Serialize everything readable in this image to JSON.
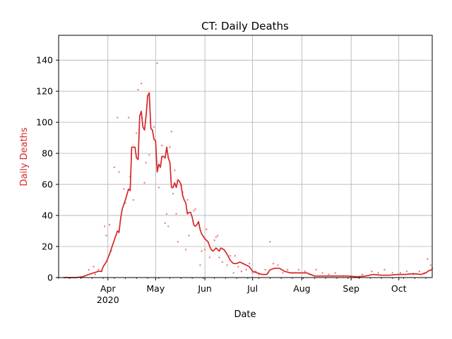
{
  "chart_data": {
    "type": "line",
    "title": "CT: Daily Deaths",
    "xlabel": "Date",
    "ylabel": "Daily Deaths",
    "ylim": [
      0,
      156
    ],
    "xlim": [
      "2020-03-01",
      "2020-10-22"
    ],
    "grid": true,
    "yticks": [
      0,
      20,
      40,
      60,
      80,
      100,
      120,
      140
    ],
    "xticks": [
      {
        "date": "2020-04-01",
        "label": "Apr",
        "sublabel": "2020"
      },
      {
        "date": "2020-05-01",
        "label": "May",
        "sublabel": ""
      },
      {
        "date": "2020-06-01",
        "label": "Jun",
        "sublabel": ""
      },
      {
        "date": "2020-07-01",
        "label": "Jul",
        "sublabel": ""
      },
      {
        "date": "2020-08-01",
        "label": "Aug",
        "sublabel": ""
      },
      {
        "date": "2020-09-01",
        "label": "Sep",
        "sublabel": ""
      },
      {
        "date": "2020-10-01",
        "label": "Oct",
        "sublabel": ""
      }
    ],
    "colors": {
      "line": "#d62728",
      "points": "#e88080",
      "ylabel": "#d62728",
      "grid": "#b0b0b0"
    },
    "series": [
      {
        "style": "line",
        "points": [
          [
            "2020-03-04",
            0
          ],
          [
            "2020-03-12",
            0
          ],
          [
            "2020-03-16",
            0.5
          ],
          [
            "2020-03-20",
            2
          ],
          [
            "2020-03-23",
            3
          ],
          [
            "2020-03-26",
            4
          ],
          [
            "2020-03-28",
            4
          ],
          [
            "2020-03-29",
            7
          ],
          [
            "2020-03-31",
            10
          ],
          [
            "2020-04-02",
            15
          ],
          [
            "2020-04-04",
            21
          ],
          [
            "2020-04-06",
            27
          ],
          [
            "2020-04-07",
            30
          ],
          [
            "2020-04-08",
            29
          ],
          [
            "2020-04-09",
            38
          ],
          [
            "2020-04-10",
            44
          ],
          [
            "2020-04-12",
            50
          ],
          [
            "2020-04-14",
            57
          ],
          [
            "2020-04-15",
            56
          ],
          [
            "2020-04-16",
            84
          ],
          [
            "2020-04-17",
            84
          ],
          [
            "2020-04-18",
            84
          ],
          [
            "2020-04-19",
            77
          ],
          [
            "2020-04-20",
            76
          ],
          [
            "2020-04-21",
            104
          ],
          [
            "2020-04-22",
            107
          ],
          [
            "2020-04-23",
            97
          ],
          [
            "2020-04-24",
            95
          ],
          [
            "2020-04-25",
            104
          ],
          [
            "2020-04-26",
            117
          ],
          [
            "2020-04-27",
            119
          ],
          [
            "2020-04-28",
            96
          ],
          [
            "2020-04-29",
            95
          ],
          [
            "2020-04-30",
            89
          ],
          [
            "2020-05-01",
            88
          ],
          [
            "2020-05-02",
            68
          ],
          [
            "2020-05-03",
            73
          ],
          [
            "2020-05-04",
            71
          ],
          [
            "2020-05-05",
            78
          ],
          [
            "2020-05-06",
            78
          ],
          [
            "2020-05-07",
            77
          ],
          [
            "2020-05-08",
            84
          ],
          [
            "2020-05-09",
            77
          ],
          [
            "2020-05-10",
            74
          ],
          [
            "2020-05-11",
            58
          ],
          [
            "2020-05-12",
            58
          ],
          [
            "2020-05-13",
            61
          ],
          [
            "2020-05-14",
            58
          ],
          [
            "2020-05-15",
            63
          ],
          [
            "2020-05-16",
            62
          ],
          [
            "2020-05-17",
            60
          ],
          [
            "2020-05-18",
            53
          ],
          [
            "2020-05-19",
            50
          ],
          [
            "2020-05-20",
            48
          ],
          [
            "2020-05-21",
            41
          ],
          [
            "2020-05-22",
            42
          ],
          [
            "2020-05-23",
            42
          ],
          [
            "2020-05-24",
            39
          ],
          [
            "2020-05-25",
            34
          ],
          [
            "2020-05-26",
            33
          ],
          [
            "2020-05-27",
            34
          ],
          [
            "2020-05-28",
            36
          ],
          [
            "2020-05-29",
            31
          ],
          [
            "2020-05-30",
            28
          ],
          [
            "2020-06-01",
            25
          ],
          [
            "2020-06-03",
            23
          ],
          [
            "2020-06-04",
            20
          ],
          [
            "2020-06-05",
            18
          ],
          [
            "2020-06-06",
            17
          ],
          [
            "2020-06-08",
            19
          ],
          [
            "2020-06-10",
            17
          ],
          [
            "2020-06-11",
            19
          ],
          [
            "2020-06-13",
            18
          ],
          [
            "2020-06-15",
            15
          ],
          [
            "2020-06-17",
            11
          ],
          [
            "2020-06-19",
            9
          ],
          [
            "2020-06-21",
            9
          ],
          [
            "2020-06-23",
            10
          ],
          [
            "2020-06-25",
            9
          ],
          [
            "2020-06-27",
            8
          ],
          [
            "2020-06-29",
            7
          ],
          [
            "2020-07-01",
            4
          ],
          [
            "2020-07-04",
            3
          ],
          [
            "2020-07-07",
            2
          ],
          [
            "2020-07-10",
            2
          ],
          [
            "2020-07-12",
            5
          ],
          [
            "2020-07-15",
            6
          ],
          [
            "2020-07-18",
            6
          ],
          [
            "2020-07-21",
            4
          ],
          [
            "2020-07-25",
            3
          ],
          [
            "2020-07-30",
            3
          ],
          [
            "2020-08-04",
            3
          ],
          [
            "2020-08-09",
            1
          ],
          [
            "2020-08-15",
            1
          ],
          [
            "2020-08-22",
            1
          ],
          [
            "2020-08-29",
            1
          ],
          [
            "2020-09-05",
            0.5
          ],
          [
            "2020-09-10",
            1
          ],
          [
            "2020-09-15",
            2
          ],
          [
            "2020-09-20",
            1.5
          ],
          [
            "2020-09-25",
            1.5
          ],
          [
            "2020-09-30",
            2
          ],
          [
            "2020-10-05",
            2
          ],
          [
            "2020-10-10",
            2.5
          ],
          [
            "2020-10-15",
            2
          ],
          [
            "2020-10-18",
            3
          ],
          [
            "2020-10-20",
            4.5
          ],
          [
            "2020-10-22",
            5
          ]
        ]
      },
      {
        "style": "scatter",
        "points": [
          [
            "2020-03-20",
            5
          ],
          [
            "2020-03-23",
            7
          ],
          [
            "2020-03-24",
            2
          ],
          [
            "2020-03-26",
            5
          ],
          [
            "2020-03-28",
            4
          ],
          [
            "2020-03-30",
            33
          ],
          [
            "2020-03-31",
            27
          ],
          [
            "2020-04-02",
            34
          ],
          [
            "2020-04-03",
            17
          ],
          [
            "2020-04-05",
            71
          ],
          [
            "2020-04-07",
            103
          ],
          [
            "2020-04-08",
            68
          ],
          [
            "2020-04-11",
            57
          ],
          [
            "2020-04-12",
            48
          ],
          [
            "2020-04-14",
            103
          ],
          [
            "2020-04-15",
            65
          ],
          [
            "2020-04-17",
            50
          ],
          [
            "2020-04-19",
            93
          ],
          [
            "2020-04-20",
            121
          ],
          [
            "2020-04-22",
            125
          ],
          [
            "2020-04-24",
            61
          ],
          [
            "2020-04-25",
            74
          ],
          [
            "2020-04-27",
            79
          ],
          [
            "2020-04-30",
            97
          ],
          [
            "2020-05-02",
            138
          ],
          [
            "2020-05-03",
            58
          ],
          [
            "2020-05-05",
            85
          ],
          [
            "2020-05-07",
            35
          ],
          [
            "2020-05-08",
            41
          ],
          [
            "2020-05-09",
            33
          ],
          [
            "2020-05-10",
            84
          ],
          [
            "2020-05-11",
            94
          ],
          [
            "2020-05-12",
            54
          ],
          [
            "2020-05-13",
            69
          ],
          [
            "2020-05-14",
            41
          ],
          [
            "2020-05-15",
            23
          ],
          [
            "2020-05-17",
            59
          ],
          [
            "2020-05-18",
            55
          ],
          [
            "2020-05-20",
            18
          ],
          [
            "2020-05-21",
            50
          ],
          [
            "2020-05-22",
            27
          ],
          [
            "2020-05-25",
            43
          ],
          [
            "2020-05-26",
            44
          ],
          [
            "2020-05-29",
            8
          ],
          [
            "2020-05-30",
            17
          ],
          [
            "2020-06-01",
            18
          ],
          [
            "2020-06-02",
            31
          ],
          [
            "2020-06-04",
            13
          ],
          [
            "2020-06-07",
            24
          ],
          [
            "2020-06-08",
            26
          ],
          [
            "2020-06-09",
            27
          ],
          [
            "2020-06-10",
            13
          ],
          [
            "2020-06-12",
            10
          ],
          [
            "2020-06-15",
            8
          ],
          [
            "2020-06-17",
            14
          ],
          [
            "2020-06-19",
            3
          ],
          [
            "2020-06-20",
            14
          ],
          [
            "2020-06-22",
            7
          ],
          [
            "2020-06-24",
            4
          ],
          [
            "2020-06-27",
            5
          ],
          [
            "2020-06-29",
            9
          ],
          [
            "2020-07-01",
            3
          ],
          [
            "2020-07-03",
            4
          ],
          [
            "2020-07-05",
            2
          ],
          [
            "2020-07-09",
            5
          ],
          [
            "2020-07-12",
            23
          ],
          [
            "2020-07-14",
            9
          ],
          [
            "2020-07-17",
            8
          ],
          [
            "2020-07-20",
            3
          ],
          [
            "2020-07-23",
            5
          ],
          [
            "2020-07-26",
            3
          ],
          [
            "2020-07-30",
            5
          ],
          [
            "2020-08-03",
            4
          ],
          [
            "2020-08-06",
            2
          ],
          [
            "2020-08-10",
            5
          ],
          [
            "2020-08-14",
            3
          ],
          [
            "2020-08-18",
            2
          ],
          [
            "2020-08-22",
            3
          ],
          [
            "2020-08-27",
            1
          ],
          [
            "2020-09-01",
            1
          ],
          [
            "2020-09-08",
            2
          ],
          [
            "2020-09-14",
            4
          ],
          [
            "2020-09-18",
            3
          ],
          [
            "2020-09-22",
            5
          ],
          [
            "2020-09-27",
            3
          ],
          [
            "2020-10-02",
            3
          ],
          [
            "2020-10-06",
            4
          ],
          [
            "2020-10-10",
            2
          ],
          [
            "2020-10-14",
            4
          ],
          [
            "2020-10-17",
            3
          ],
          [
            "2020-10-19",
            12
          ],
          [
            "2020-10-21",
            8
          ],
          [
            "2020-10-22",
            6
          ]
        ]
      }
    ]
  }
}
